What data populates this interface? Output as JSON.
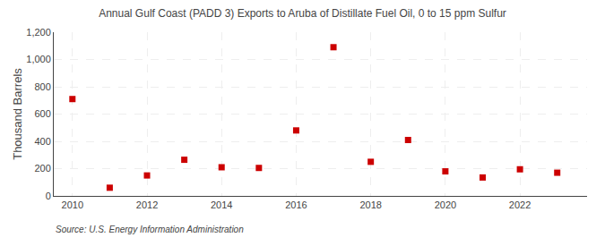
{
  "chart_data": {
    "type": "scatter",
    "title": "Annual Gulf Coast (PADD 3) Exports to Aruba of Distillate Fuel Oil, 0 to 15 ppm Sulfur",
    "ylabel": "Thousand Barrels",
    "annotations": [
      "Source: U.S. Energy Information Administration"
    ],
    "x": [
      2010,
      2011,
      2012,
      2013,
      2014,
      2015,
      2016,
      2017,
      2018,
      2019,
      2020,
      2021,
      2022,
      2023
    ],
    "values": [
      710,
      60,
      150,
      265,
      210,
      205,
      480,
      1090,
      250,
      410,
      180,
      135,
      195,
      170
    ],
    "color": "#cc0000",
    "marker": "square",
    "xlim": [
      2009.5,
      2023.8
    ],
    "xticks": [
      2010,
      2012,
      2014,
      2016,
      2018,
      2020,
      2022
    ],
    "ylim": [
      0,
      1200
    ],
    "yticks": [
      0,
      200,
      400,
      600,
      800,
      {
        "value": 1000,
        "label": "1,000"
      },
      {
        "value": 1200,
        "label": "1,200"
      }
    ],
    "grid": true
  }
}
